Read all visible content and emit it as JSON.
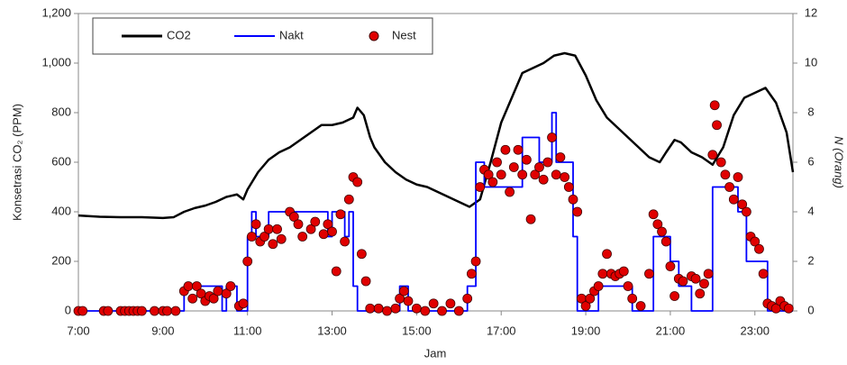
{
  "chart_data": {
    "type": "line",
    "xlabel": "Jam",
    "ylabel": "Konsetrasi CO₂ (PPM)",
    "y2label": "N (Orang)",
    "xlim": [
      7,
      23.9
    ],
    "xticks": [
      {
        "value": 7,
        "label": "7:00"
      },
      {
        "value": 9,
        "label": "9:00"
      },
      {
        "value": 11,
        "label": "11:00"
      },
      {
        "value": 13,
        "label": "13:00"
      },
      {
        "value": 15,
        "label": "15:00"
      },
      {
        "value": 17,
        "label": "17:00"
      },
      {
        "value": 19,
        "label": "19:00"
      },
      {
        "value": 21,
        "label": "21:00"
      },
      {
        "value": 23,
        "label": "23:00"
      }
    ],
    "ylim": [
      0,
      1200
    ],
    "yticks": [
      0,
      200,
      400,
      600,
      800,
      {
        "value": 1000,
        "label": "1,000"
      },
      {
        "value": 1200,
        "label": "1,200"
      }
    ],
    "y2lim": [
      0,
      12
    ],
    "y2ticks": [
      0,
      2,
      4,
      6,
      8,
      10,
      12
    ],
    "legend": "upper left",
    "series": [
      {
        "name": "CO2",
        "color": "#000000",
        "style": "line",
        "x": [
          7.0,
          7.5,
          8.0,
          8.5,
          9.0,
          9.25,
          9.5,
          9.75,
          10.0,
          10.25,
          10.5,
          10.75,
          10.9,
          11.0,
          11.25,
          11.5,
          11.75,
          12.0,
          12.25,
          12.5,
          12.75,
          13.0,
          13.25,
          13.5,
          13.6,
          13.75,
          13.9,
          14.0,
          14.25,
          14.5,
          14.75,
          15.0,
          15.25,
          15.5,
          15.75,
          16.0,
          16.25,
          16.5,
          16.75,
          17.0,
          17.25,
          17.5,
          17.75,
          18.0,
          18.25,
          18.5,
          18.75,
          19.0,
          19.25,
          19.5,
          19.75,
          20.0,
          20.25,
          20.5,
          20.75,
          20.9,
          21.1,
          21.25,
          21.5,
          21.75,
          22.0,
          22.25,
          22.5,
          22.75,
          23.0,
          23.25,
          23.5,
          23.75,
          23.9
        ],
        "values": [
          385,
          380,
          378,
          378,
          375,
          378,
          400,
          415,
          425,
          440,
          460,
          470,
          450,
          490,
          560,
          610,
          640,
          660,
          690,
          720,
          750,
          750,
          760,
          780,
          820,
          790,
          700,
          660,
          600,
          560,
          530,
          510,
          500,
          480,
          460,
          440,
          420,
          450,
          600,
          760,
          860,
          960,
          980,
          1000,
          1030,
          1040,
          1030,
          950,
          850,
          780,
          740,
          700,
          660,
          620,
          600,
          640,
          690,
          680,
          640,
          620,
          590,
          660,
          790,
          860,
          880,
          900,
          840,
          720,
          560
        ]
      },
      {
        "name": "Nakt",
        "color": "#0000ff",
        "style": "step",
        "axis": "y2",
        "x": [
          7,
          9.5,
          10.4,
          10.5,
          10.75,
          11.0,
          11.1,
          11.2,
          11.5,
          12.9,
          13.0,
          13.3,
          13.4,
          13.5,
          13.6,
          14.6,
          14.8,
          16.2,
          16.4,
          16.6,
          17.5,
          17.9,
          18.2,
          18.3,
          18.7,
          18.8,
          19.3,
          20.1,
          20.6,
          21.0,
          21.2,
          21.5,
          22.0,
          22.6,
          22.8,
          23.3,
          23.9
        ],
        "values": [
          0,
          1,
          0,
          1,
          0,
          3,
          4,
          3,
          4,
          3,
          4,
          3,
          4,
          1,
          0,
          1,
          0,
          1,
          6,
          5,
          7,
          6,
          8,
          6,
          3,
          0,
          1,
          0,
          3,
          2,
          1,
          0,
          5,
          4,
          2,
          0,
          0
        ]
      },
      {
        "name": "Nest",
        "color": "#e00000",
        "style": "marker",
        "axis": "y2",
        "x": [
          7.0,
          7.1,
          7.6,
          7.7,
          8.0,
          8.1,
          8.2,
          8.3,
          8.4,
          8.5,
          8.8,
          9.0,
          9.1,
          9.3,
          9.5,
          9.6,
          9.7,
          9.8,
          9.9,
          10.0,
          10.1,
          10.2,
          10.3,
          10.5,
          10.6,
          10.8,
          10.9,
          11.0,
          11.1,
          11.2,
          11.3,
          11.4,
          11.5,
          11.6,
          11.7,
          11.8,
          12.0,
          12.1,
          12.2,
          12.3,
          12.5,
          12.6,
          12.8,
          12.9,
          13.0,
          13.1,
          13.2,
          13.3,
          13.4,
          13.5,
          13.6,
          13.7,
          13.8,
          13.9,
          14.1,
          14.3,
          14.5,
          14.6,
          14.7,
          14.8,
          15.0,
          15.2,
          15.4,
          15.6,
          15.8,
          16.0,
          16.2,
          16.3,
          16.4,
          16.5,
          16.6,
          16.7,
          16.8,
          16.9,
          17.0,
          17.1,
          17.2,
          17.3,
          17.4,
          17.5,
          17.6,
          17.7,
          17.8,
          17.9,
          18.0,
          18.1,
          18.2,
          18.3,
          18.4,
          18.5,
          18.6,
          18.7,
          18.8,
          18.9,
          19.0,
          19.1,
          19.2,
          19.3,
          19.4,
          19.5,
          19.6,
          19.7,
          19.8,
          19.9,
          20.0,
          20.1,
          20.3,
          20.5,
          20.6,
          20.7,
          20.8,
          20.9,
          21.0,
          21.1,
          21.2,
          21.3,
          21.5,
          21.6,
          21.7,
          21.8,
          21.9,
          22.0,
          22.05,
          22.1,
          22.2,
          22.3,
          22.4,
          22.5,
          22.6,
          22.7,
          22.8,
          22.9,
          23.0,
          23.1,
          23.2,
          23.3,
          23.4,
          23.5,
          23.6,
          23.7,
          23.8
        ],
        "values": [
          0,
          0,
          0,
          0,
          0,
          0,
          0,
          0,
          0,
          0,
          0,
          0,
          0,
          0,
          0.8,
          1,
          0.5,
          1,
          0.7,
          0.4,
          0.6,
          0.5,
          0.8,
          0.7,
          1,
          0.2,
          0.3,
          2,
          3,
          3.5,
          2.8,
          3,
          3.3,
          2.7,
          3.3,
          2.9,
          4,
          3.8,
          3.5,
          3,
          3.3,
          3.6,
          3.1,
          3.5,
          3.2,
          1.6,
          3.9,
          2.8,
          4.5,
          5.4,
          5.2,
          2.3,
          1.2,
          0.1,
          0.1,
          0,
          0.1,
          0.5,
          0.8,
          0.4,
          0.1,
          0,
          0.3,
          0,
          0.3,
          0,
          0.5,
          1.5,
          2,
          5,
          5.7,
          5.5,
          5.2,
          6,
          5.5,
          6.5,
          4.8,
          5.8,
          6.5,
          5.5,
          6.1,
          3.7,
          5.5,
          5.8,
          5.3,
          6,
          7,
          5.5,
          6.2,
          5.4,
          5,
          4.5,
          4,
          0.5,
          0.2,
          0.5,
          0.8,
          1,
          1.5,
          2.3,
          1.5,
          1.4,
          1.5,
          1.6,
          1,
          0.5,
          0.2,
          1.5,
          3.9,
          3.5,
          3.2,
          2.8,
          1.8,
          0.6,
          1.3,
          1.2,
          1.4,
          1.3,
          0.7,
          1.1,
          1.5,
          6.3,
          8.3,
          7.5,
          6,
          5.5,
          5,
          4.5,
          5.4,
          4.3,
          4,
          3,
          2.8,
          2.5,
          1.5,
          0.3,
          0.2,
          0.1,
          0.4,
          0.2,
          0.1
        ]
      }
    ]
  }
}
